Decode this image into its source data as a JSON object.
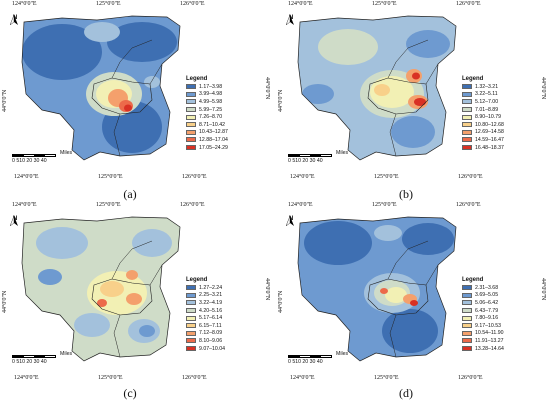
{
  "coords": {
    "top": [
      "124°0'0\"E",
      "125°0'0\"E",
      "126°0'0\"E"
    ],
    "bottom": [
      "124°0'0\"E",
      "125°0'0\"E",
      "126°0'0\"E"
    ],
    "left": "44°0'0\"N",
    "right": "44°0'0\"N"
  },
  "north_label": "N",
  "scale": {
    "ticks": "0 510 20 30 40",
    "unit": "Miles"
  },
  "legend_title": "Legend",
  "colors": [
    "#3e6fb2",
    "#6e9ad0",
    "#a3c1dc",
    "#cfdcc8",
    "#f2f0b4",
    "#f8d08a",
    "#f4a06c",
    "#ec6a4a",
    "#d93124"
  ],
  "panels": [
    {
      "label": "(a)",
      "classes": [
        "1.17–3.98",
        "3.99–4.98",
        "4.99–5.98",
        "5.99–7.25",
        "7.26–8.70",
        "8.71–10.42",
        "10.43–12.87",
        "12.88–17.04",
        "17.05–24.29"
      ]
    },
    {
      "label": "(b)",
      "classes": [
        "1.32–3.21",
        "3.22–5.11",
        "5.12–7.00",
        "7.01–8.89",
        "8.90–10.79",
        "10.80–12.68",
        "12.69–14.58",
        "14.59–16.47",
        "16.48–18.37"
      ]
    },
    {
      "label": "(c)",
      "classes": [
        "1.27–2.24",
        "2.25–3.21",
        "3.22–4.19",
        "4.20–5.16",
        "5.17–6.14",
        "6.15–7.11",
        "7.12–8.09",
        "8.10–9.06",
        "9.07–10.04"
      ]
    },
    {
      "label": "(d)",
      "classes": [
        "2.31–3.68",
        "3.69–5.05",
        "5.06–6.42",
        "6.43–7.79",
        "7.80–9.16",
        "9.17–10.53",
        "10.54–11.90",
        "11.91–13.27",
        "13.28–14.64"
      ]
    }
  ]
}
